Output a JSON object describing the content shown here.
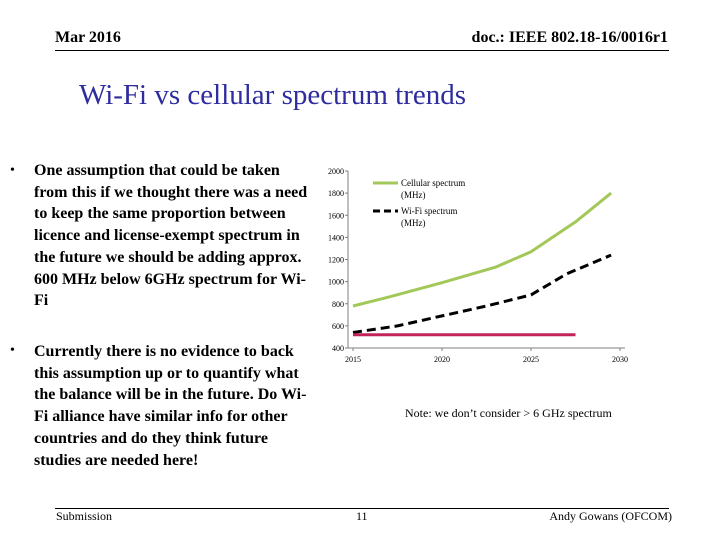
{
  "header": {
    "date": "Mar 2016",
    "doc_id": "doc.: IEEE 802.18-16/0016r1"
  },
  "title": "Wi-Fi vs cellular spectrum trends",
  "bullets": [
    {
      "marker": "•",
      "text": "One assumption that could be taken from this if we thought there was a need to keep the same proportion between licence and license-exempt spectrum in the future we should be adding approx. 600 MHz below 6GHz spectrum for Wi-Fi"
    },
    {
      "marker": "•",
      "text": "Currently there is no evidence to back this assumption up or to quantify what the balance will be in the future. Do Wi-Fi alliance have similar info for other countries and do they think future studies are needed here!"
    }
  ],
  "note": "Note: we don’t consider > 6 GHz spectrum",
  "footer": {
    "submission": "Submission",
    "page": "11",
    "author": "Andy Gowans (OFCOM)"
  },
  "chart_data": {
    "type": "line",
    "title": "",
    "xlabel": "",
    "ylabel": "",
    "x_ticks": [
      2015,
      2020,
      2025,
      2030
    ],
    "y_ticks": [
      400,
      600,
      800,
      1000,
      1200,
      1400,
      1600,
      1800,
      2000
    ],
    "xlim": [
      2015,
      2030
    ],
    "ylim": [
      400,
      2000
    ],
    "legend_position": "top-left",
    "series": [
      {
        "name": "Cellular spectrum (MHz)",
        "legend_lines": [
          "Cellular spectrum",
          "(MHz)"
        ],
        "color": "#a3c85a",
        "style": "solid",
        "points": [
          [
            2015,
            780
          ],
          [
            2017,
            860
          ],
          [
            2020,
            990
          ],
          [
            2023,
            1130
          ],
          [
            2025,
            1270
          ],
          [
            2027.5,
            1540
          ],
          [
            2029.5,
            1800
          ]
        ]
      },
      {
        "name": "Wi-Fi spectrum (MHz)",
        "legend_lines": [
          "Wi-Fi spectrum",
          "(MHz)"
        ],
        "color": "#000000",
        "style": "dashed",
        "points": [
          [
            2015,
            540
          ],
          [
            2017.5,
            600
          ],
          [
            2020,
            690
          ],
          [
            2022.5,
            780
          ],
          [
            2025,
            880
          ],
          [
            2027,
            1070
          ],
          [
            2029.5,
            1240
          ]
        ]
      },
      {
        "name": "",
        "color": "#c0245a",
        "style": "solid",
        "points": [
          [
            2015,
            520
          ],
          [
            2027.5,
            520
          ]
        ]
      }
    ]
  }
}
